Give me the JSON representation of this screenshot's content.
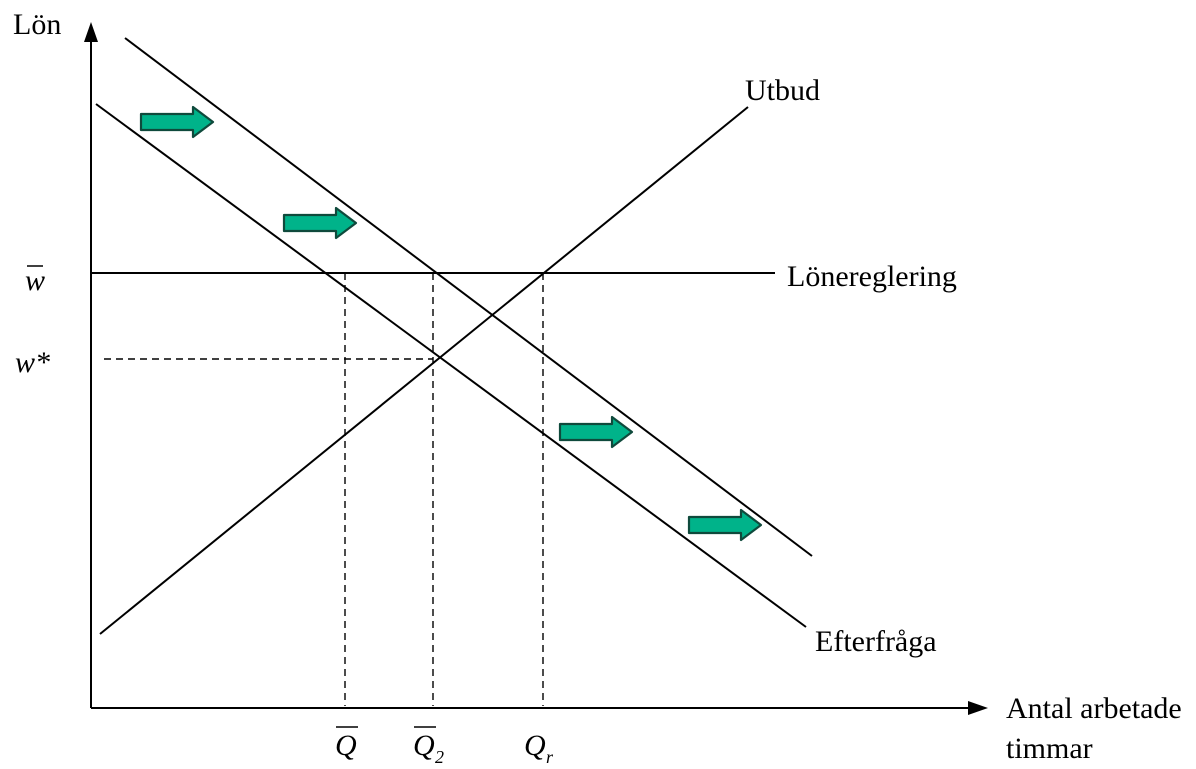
{
  "axes": {
    "y_label": "Lön",
    "x_label_line1": "Antal arbetade",
    "x_label_line2": "timmar"
  },
  "curves": {
    "supply": "Utbud",
    "wage_regulation": "Lönereglering",
    "demand": "Efterfråga"
  },
  "y_ticks": {
    "w_bar": "w",
    "w_star": "w*"
  },
  "x_ticks": {
    "q_bar": "Q",
    "q_bar_2": "Q",
    "q_bar_2_sub": "2",
    "q_r": "Q",
    "q_r_sub": "r"
  },
  "colors": {
    "shift_arrow_fill": "#00b38a",
    "shift_arrow_stroke": "#0f4a3c"
  }
}
